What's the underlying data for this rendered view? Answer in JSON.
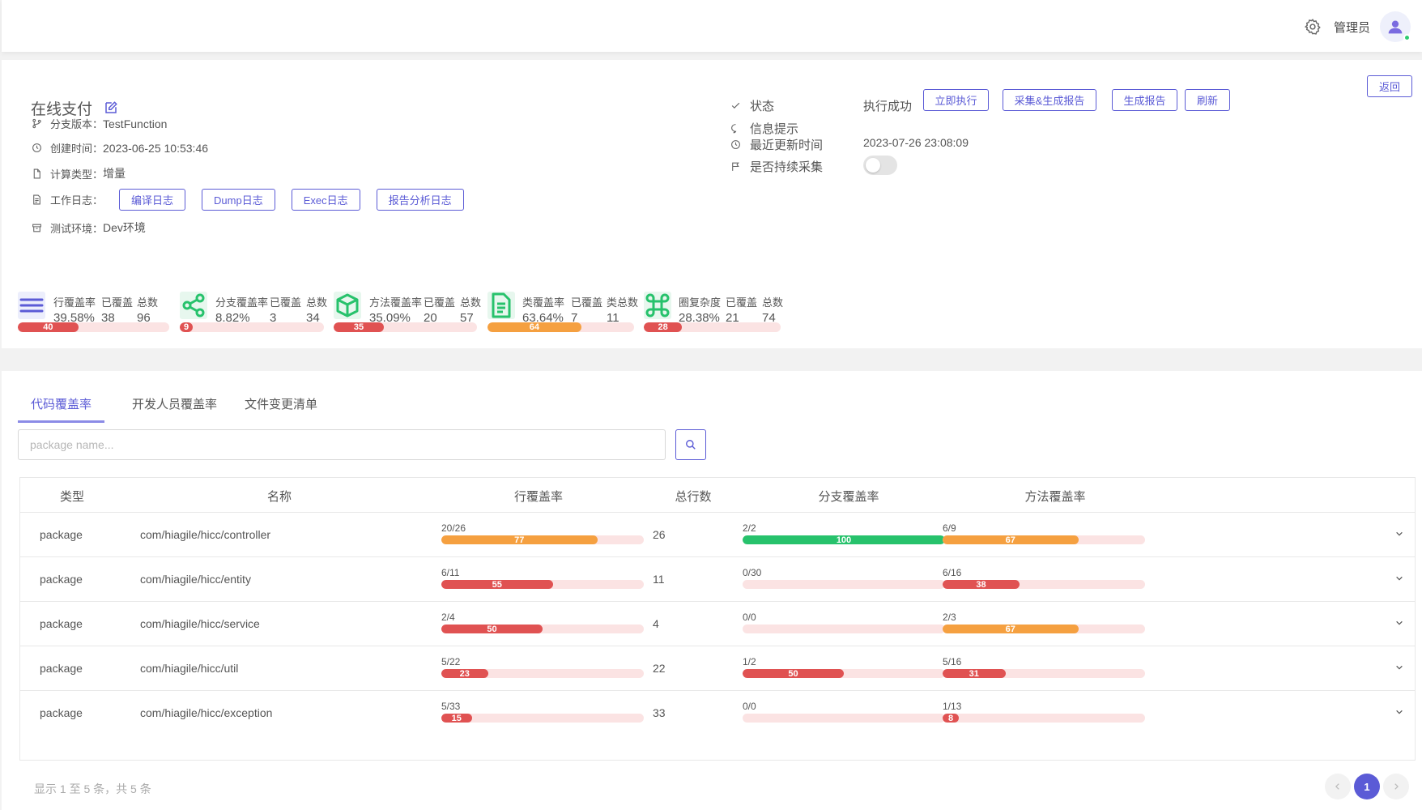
{
  "header": {
    "username": "管理员"
  },
  "project": {
    "title": "在线支付",
    "back_label": "返回",
    "branch_label": "分支版本：",
    "branch": "TestFunction",
    "created_label": "创建时间：",
    "created": "2023-06-25 10:53:46",
    "calc_label": "计算类型：",
    "calc": "增量",
    "log_label": "工作日志：",
    "logs": [
      "编译日志",
      "Dump日志",
      "Exec日志",
      "报告分析日志"
    ],
    "env_label": "测试环境：",
    "env": "Dev环境"
  },
  "status": {
    "state_label": "状态",
    "state_value": "执行成功",
    "buttons": [
      "立即执行",
      "采集&生成报告",
      "生成报告",
      "刷新"
    ],
    "info_label": "信息提示",
    "updated_label": "最近更新时间",
    "updated_value": "2023-07-26 23:08:09",
    "continuous_label": "是否持续采集",
    "continuous_on": false
  },
  "metrics": [
    {
      "icon": "lines-icon",
      "h1": "行覆盖率",
      "v1": "39.58%",
      "h2": "已覆盖",
      "v2": "38",
      "h3": "总数",
      "v3": "96",
      "pct": 40,
      "color": "#e05252"
    },
    {
      "icon": "share-icon",
      "h1": "分支覆盖率",
      "v1": "8.82%",
      "h2": "已覆盖",
      "v2": "3",
      "h3": "总数",
      "v3": "34",
      "pct": 9,
      "color": "#e05252"
    },
    {
      "icon": "cube-icon",
      "h1": "方法覆盖率",
      "v1": "35.09%",
      "h2": "已覆盖",
      "v2": "20",
      "h3": "总数",
      "v3": "57",
      "pct": 35,
      "color": "#e05252"
    },
    {
      "icon": "document-icon",
      "h1": "类覆盖率",
      "v1": "63.64%",
      "h2": "已覆盖",
      "v2": "7",
      "h3": "类总数",
      "v3": "11",
      "pct": 64,
      "color": "#f5a040"
    },
    {
      "icon": "command-icon",
      "h1": "圈复杂度",
      "v1": "28.38%",
      "h2": "已覆盖",
      "v2": "21",
      "h3": "总数",
      "v3": "74",
      "pct": 28,
      "color": "#e05252"
    }
  ],
  "tabs": [
    "代码覆盖率",
    "开发人员覆盖率",
    "文件变更清单"
  ],
  "search": {
    "placeholder": "package name..."
  },
  "table": {
    "headers": [
      "类型",
      "名称",
      "行覆盖率",
      "总行数",
      "分支覆盖率",
      "方法覆盖率"
    ],
    "rows": [
      {
        "type": "package",
        "name": "com/hiagile/hicc/controller",
        "line_frac": "20/26",
        "line_pct": 77,
        "total": "26",
        "branch_frac": "2/2",
        "branch_pct": 100,
        "method_frac": "6/9",
        "method_pct": 67
      },
      {
        "type": "package",
        "name": "com/hiagile/hicc/entity",
        "line_frac": "6/11",
        "line_pct": 55,
        "total": "11",
        "branch_frac": "0/30",
        "branch_pct": 0,
        "method_frac": "6/16",
        "method_pct": 38
      },
      {
        "type": "package",
        "name": "com/hiagile/hicc/service",
        "line_frac": "2/4",
        "line_pct": 50,
        "total": "4",
        "branch_frac": "0/0",
        "branch_pct": 0,
        "method_frac": "2/3",
        "method_pct": 67
      },
      {
        "type": "package",
        "name": "com/hiagile/hicc/util",
        "line_frac": "5/22",
        "line_pct": 23,
        "total": "22",
        "branch_frac": "1/2",
        "branch_pct": 50,
        "method_frac": "5/16",
        "method_pct": 31
      },
      {
        "type": "package",
        "name": "com/hiagile/hicc/exception",
        "line_frac": "5/33",
        "line_pct": 15,
        "total": "33",
        "branch_frac": "0/0",
        "branch_pct": 0,
        "method_frac": "1/13",
        "method_pct": 8
      }
    ]
  },
  "footer": {
    "summary": "显示 1 至 5 条，共 5 条",
    "current_page": "1"
  },
  "colors": {
    "accent": "#5b5bd6",
    "red": "#e05252",
    "orange": "#f5a040",
    "green": "#27c26c",
    "track": "#fbe3e3"
  }
}
